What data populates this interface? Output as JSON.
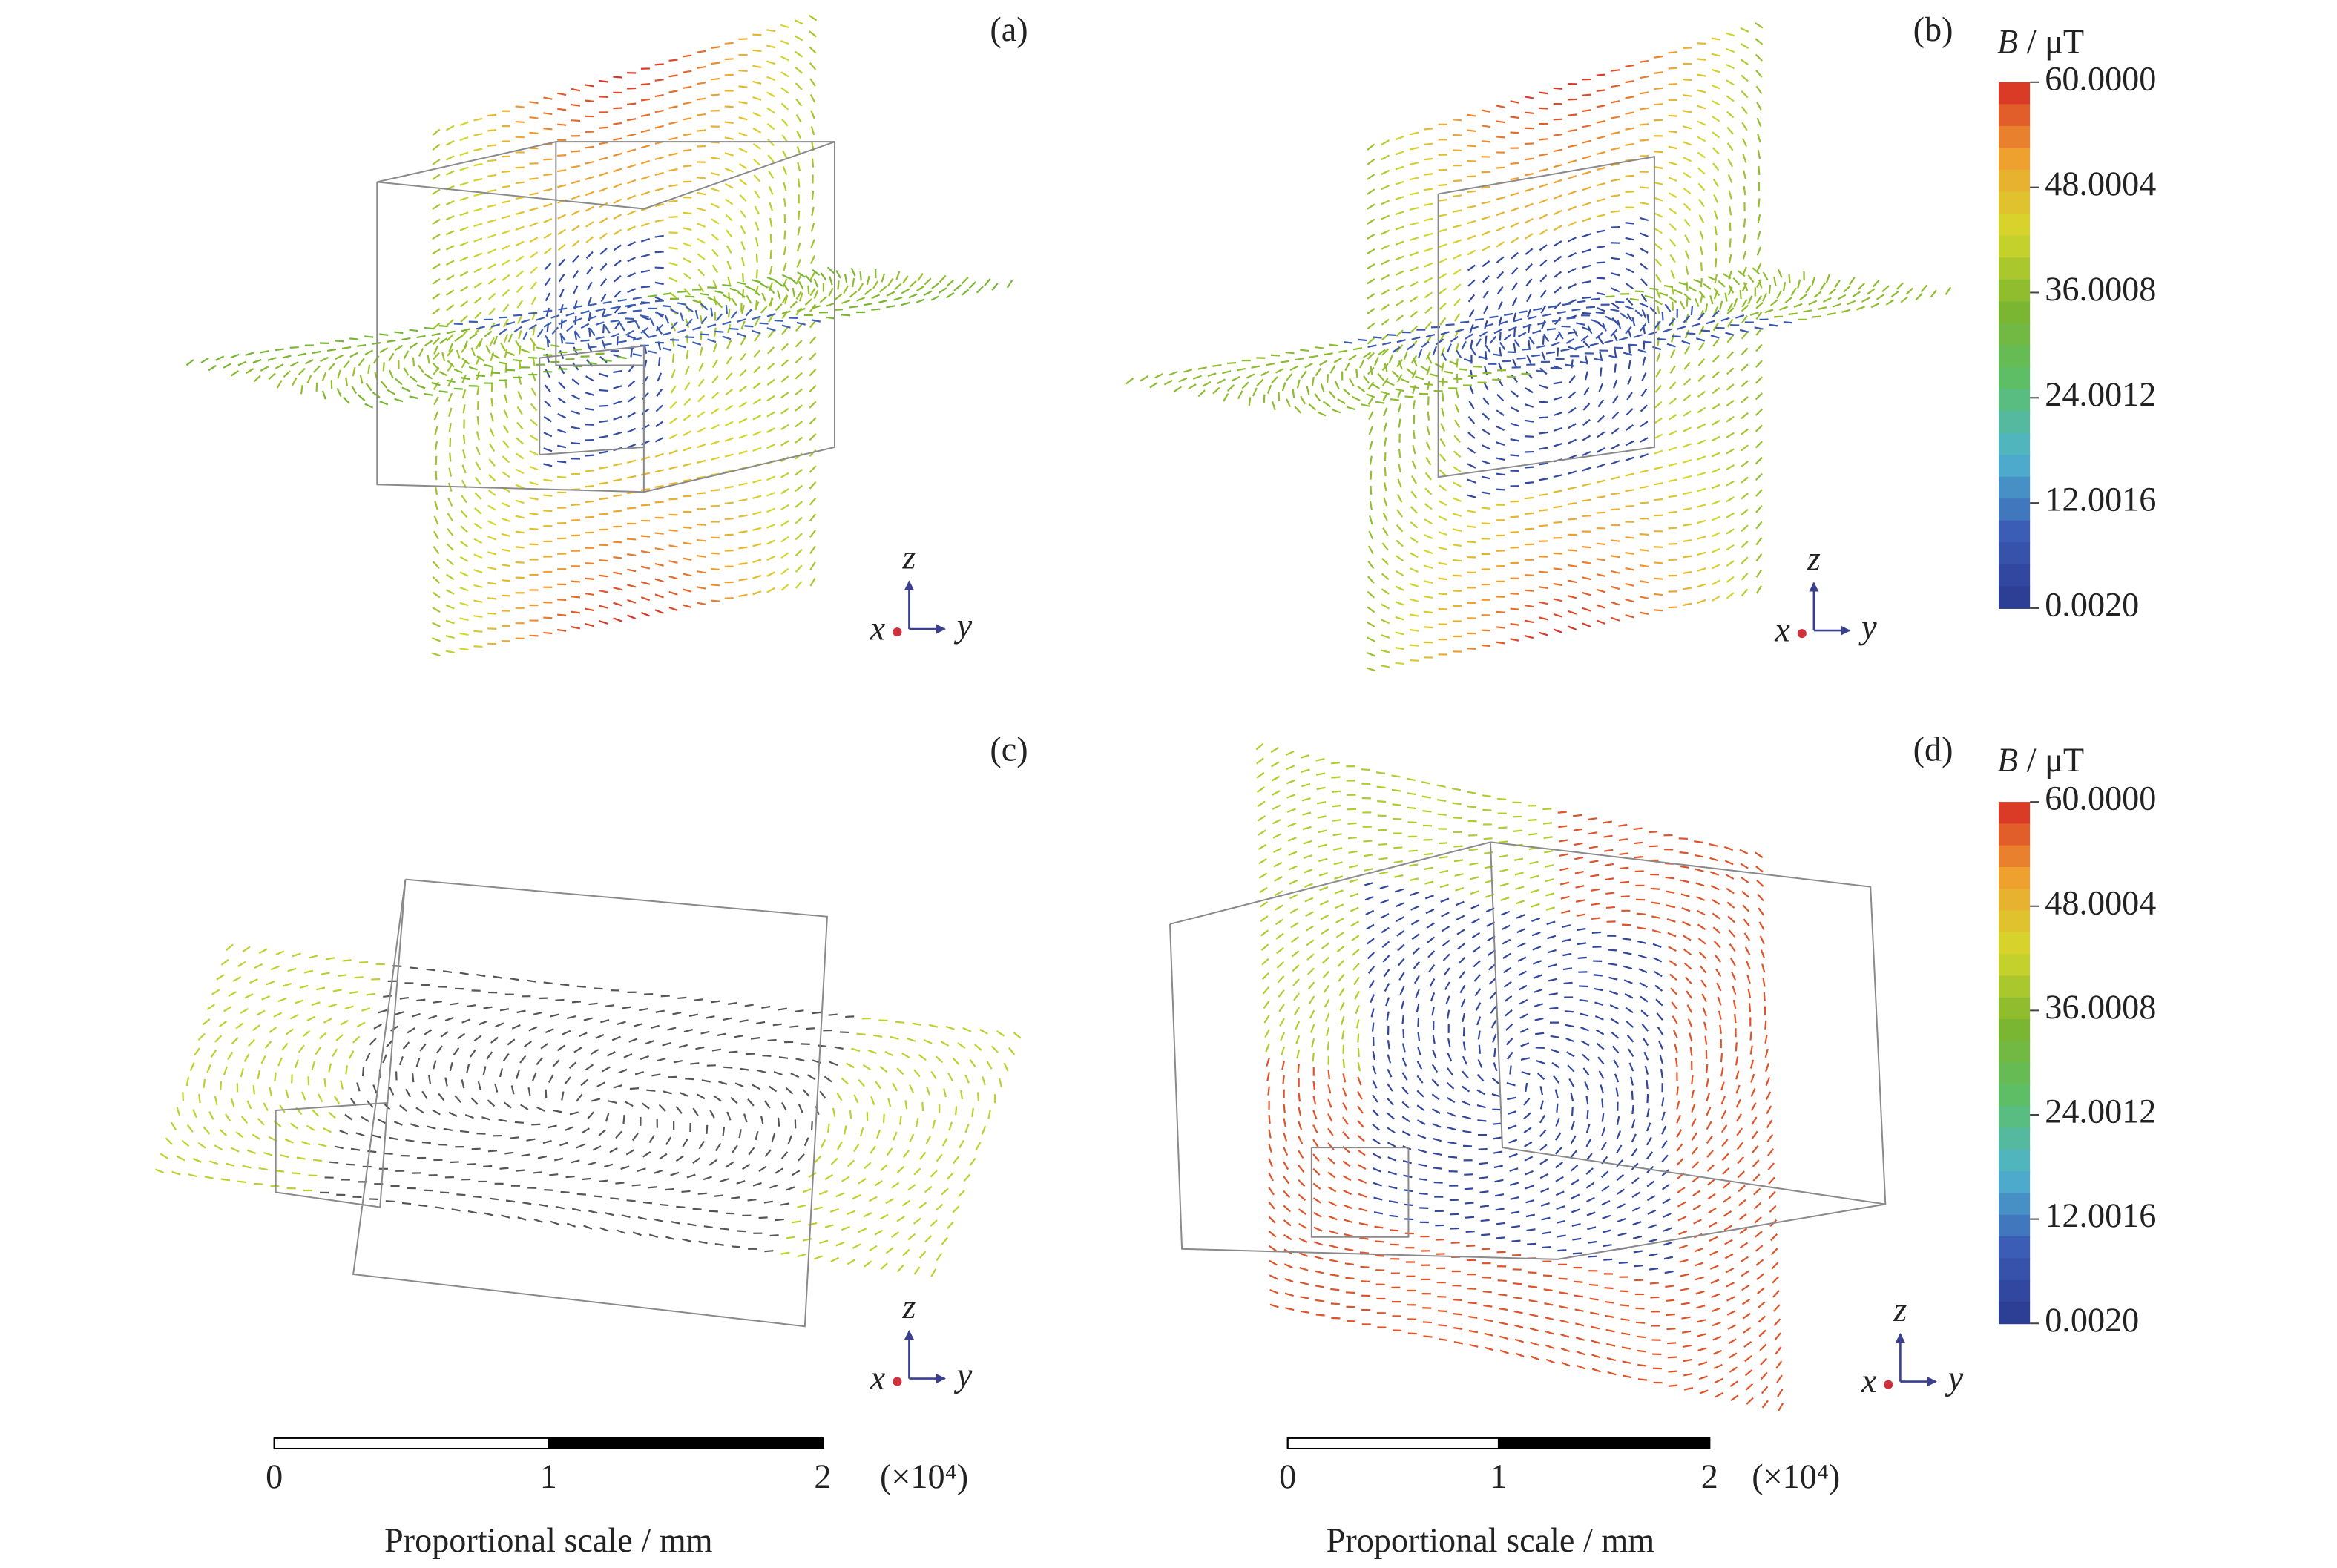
{
  "panels": [
    {
      "label": "(a)",
      "axes": {
        "z": "z",
        "x": "x",
        "y": "y"
      }
    },
    {
      "label": "(b)",
      "axes": {
        "z": "z",
        "x": "x",
        "y": "y"
      }
    },
    {
      "label": "(c)",
      "axes": {
        "z": "z",
        "x": "x",
        "y": "y"
      }
    },
    {
      "label": "(d)",
      "axes": {
        "z": "z",
        "x": "x",
        "y": "y"
      }
    }
  ],
  "colorbars": [
    {
      "symbol": "B",
      "unit": "/ μT",
      "ticks": [
        {
          "value": 60,
          "label": "60.0000"
        },
        {
          "value": 48.0004,
          "label": "48.0004"
        },
        {
          "value": 36.0008,
          "label": "36.0008"
        },
        {
          "value": 24.0012,
          "label": "24.0012"
        },
        {
          "value": 12.0016,
          "label": "12.0016"
        },
        {
          "value": 0.002,
          "label": "0.0020"
        }
      ]
    },
    {
      "symbol": "B",
      "unit": "/ μT",
      "ticks": [
        {
          "value": 60,
          "label": "60.0000"
        },
        {
          "value": 48.0004,
          "label": "48.0004"
        },
        {
          "value": 36.0008,
          "label": "36.0008"
        },
        {
          "value": 24.0012,
          "label": "24.0012"
        },
        {
          "value": 12.0016,
          "label": "12.0016"
        },
        {
          "value": 0.002,
          "label": "0.0020"
        }
      ]
    }
  ],
  "scale_bars": [
    {
      "ticks": [
        0,
        1,
        2
      ],
      "multiplier": "(×10⁴)",
      "caption": "Proportional scale / mm"
    },
    {
      "ticks": [
        0,
        1,
        2
      ],
      "multiplier": "(×10⁴)",
      "caption": "Proportional scale / mm"
    }
  ]
}
